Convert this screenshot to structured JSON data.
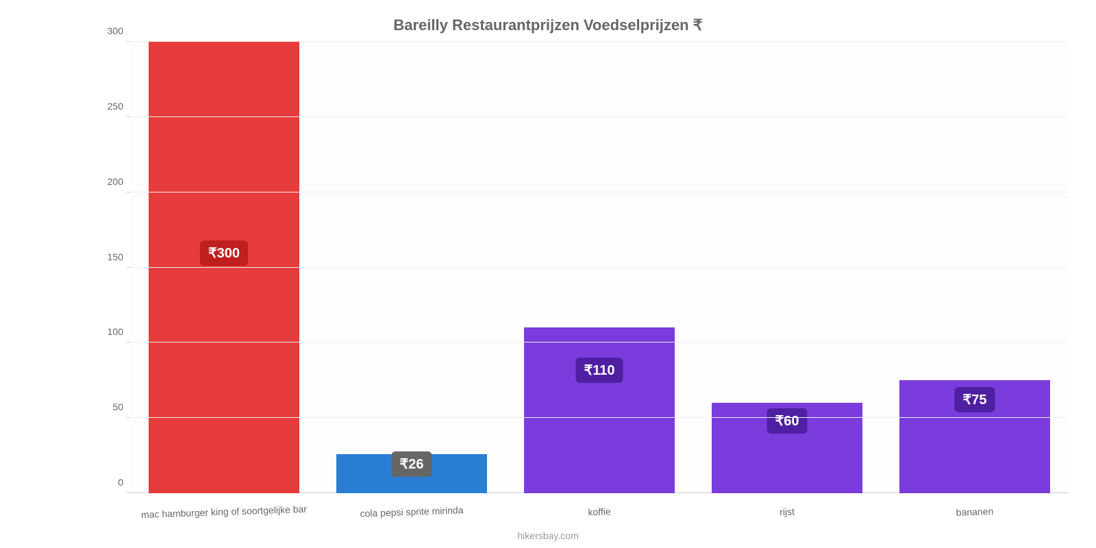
{
  "chart": {
    "type": "bar",
    "title": "Bareilly Restaurantprijzen Voedselprijzen ₹",
    "title_fontsize": 22,
    "title_color": "#666666",
    "background_color": "#ffffff",
    "plot_background_color": "#fdfdfd",
    "grid_color": "#f0f0f0",
    "axis_color": "#cccccc",
    "tick_color": "#666666",
    "tick_fontsize": 14,
    "categories": [
      "mac hamburger king of soortgelijke bar",
      "cola pepsi sprite mirinda",
      "koffie",
      "rijst",
      "bananen"
    ],
    "values": [
      300,
      26,
      110,
      60,
      75
    ],
    "value_labels": [
      "₹300",
      "₹26",
      "₹110",
      "₹60",
      "₹75"
    ],
    "bar_colors": [
      "#e73c3c",
      "#2a7fd4",
      "#7a3cdc",
      "#7a3cdc",
      "#7a3cdc"
    ],
    "badge_colors": [
      "#bf1f1f",
      "#666666",
      "#4f1fa3",
      "#4f1fa3",
      "#4f1fa3"
    ],
    "value_label_fontsize": 20,
    "ylim": [
      0,
      300
    ],
    "yticks": [
      0,
      50,
      100,
      150,
      200,
      250,
      300
    ],
    "bar_width_pct": 80,
    "attribution": "hikersbay.com",
    "attribution_color": "#999999"
  }
}
